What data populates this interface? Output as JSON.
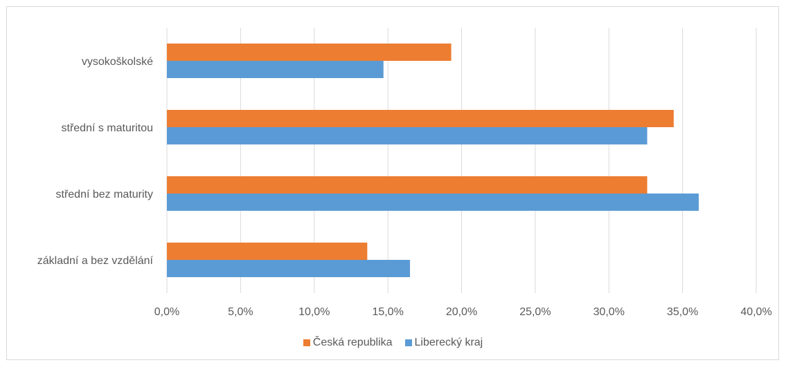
{
  "chart_data": {
    "type": "bar",
    "orientation": "horizontal",
    "title": "",
    "xlabel": "",
    "ylabel": "",
    "categories": [
      "základní a bez vzdělání",
      "střední bez maturity",
      "střední s maturitou",
      "vysokoškolské"
    ],
    "series": [
      {
        "name": "Česká republika",
        "color": "#ED7D31",
        "values": [
          13.6,
          32.6,
          34.4,
          19.3
        ]
      },
      {
        "name": "Liberecký kraj",
        "color": "#5B9BD5",
        "values": [
          16.5,
          36.1,
          32.6,
          14.7
        ]
      }
    ],
    "xlim": [
      0,
      40
    ],
    "xticks": [
      "0,0%",
      "5,0%",
      "10,0%",
      "15,0%",
      "20,0%",
      "25,0%",
      "30,0%",
      "35,0%",
      "40,0%"
    ],
    "grid": true,
    "legend_position": "bottom"
  }
}
